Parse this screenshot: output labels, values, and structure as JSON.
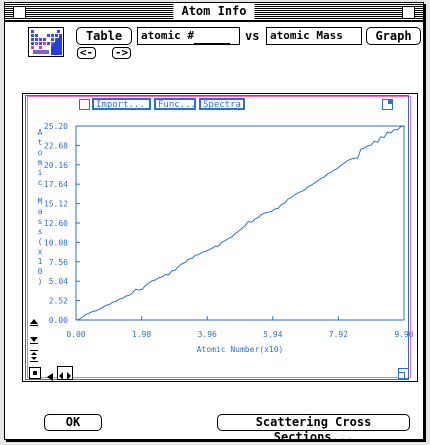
{
  "window": {
    "title": "Atom Info"
  },
  "toolbar": {
    "table_label": "Table",
    "x_field_value": "atomic #",
    "vs_label": "vs",
    "y_field_value": "atomic Mass",
    "graph_label": "Graph",
    "prev_label": "<-",
    "next_label": "->"
  },
  "graph_tools": {
    "import_label": "Import...",
    "func_label": "Func...",
    "spectra_label": "Spectra"
  },
  "footer": {
    "ok_label": "OK",
    "scattering_label": "Scattering Cross Sections..."
  },
  "colors": {
    "plot": "#2a6fd6",
    "frame": "#ff66cc"
  },
  "chart_data": {
    "type": "line",
    "xlabel": "Atomic Number(x10)",
    "ylabel": "Atomic Mass(x10)",
    "x_ticks": [
      "0.00",
      "1.98",
      "3.96",
      "5.94",
      "7.92",
      "9.90"
    ],
    "y_ticks": [
      "25.20",
      "22.68",
      "20.16",
      "17.64",
      "15.12",
      "12.60",
      "10.08",
      "7.56",
      "5.04",
      "2.52",
      "0.00"
    ],
    "xlim": [
      0,
      9.9
    ],
    "ylim": [
      0,
      25.2
    ],
    "series": [
      {
        "x": [
          0.1,
          0.2,
          0.3,
          0.4,
          0.5,
          0.6,
          0.7,
          0.8,
          0.9,
          1.0,
          1.1,
          1.2,
          1.3,
          1.4,
          1.5,
          1.6,
          1.7,
          1.8,
          1.9,
          2.0,
          2.1,
          2.2,
          2.3,
          2.4,
          2.5,
          2.6,
          2.7,
          2.8,
          2.9,
          3.0,
          3.1,
          3.2,
          3.3,
          3.4,
          3.5,
          3.6,
          3.7,
          3.8,
          3.9,
          4.0,
          4.1,
          4.2,
          4.3,
          4.4,
          4.5,
          4.6,
          4.7,
          4.8,
          4.9,
          5.0,
          5.1,
          5.2,
          5.3,
          5.4,
          5.5,
          5.6,
          5.7,
          5.8,
          5.9,
          6.0,
          6.1,
          6.2,
          6.3,
          6.4,
          6.5,
          6.6,
          6.7,
          6.8,
          6.9,
          7.0,
          7.1,
          7.2,
          7.3,
          7.4,
          7.5,
          7.6,
          7.7,
          7.8,
          7.9,
          8.0,
          8.1,
          8.2,
          8.3,
          8.4,
          8.5,
          8.6,
          8.7,
          8.8,
          8.9,
          9.0,
          9.1,
          9.2,
          9.3,
          9.4,
          9.5,
          9.6,
          9.7,
          9.8,
          9.9
        ],
        "y": [
          0.1,
          0.4,
          0.7,
          0.9,
          1.1,
          1.2,
          1.4,
          1.6,
          1.9,
          2.0,
          2.3,
          2.4,
          2.7,
          2.8,
          3.1,
          3.2,
          3.5,
          4.0,
          3.9,
          4.0,
          4.5,
          4.8,
          5.1,
          5.2,
          5.5,
          5.6,
          5.9,
          5.9,
          6.4,
          6.5,
          7.0,
          7.3,
          7.5,
          7.9,
          8.0,
          8.4,
          8.5,
          8.8,
          8.9,
          9.1,
          9.3,
          9.6,
          9.6,
          10.1,
          10.3,
          10.6,
          10.8,
          11.2,
          11.5,
          11.9,
          12.2,
          12.8,
          12.7,
          13.1,
          13.3,
          13.7,
          13.9,
          14.0,
          14.1,
          14.4,
          14.5,
          15.0,
          15.2,
          15.7,
          15.9,
          16.3,
          16.5,
          16.7,
          16.9,
          17.3,
          17.5,
          17.8,
          18.1,
          18.4,
          18.6,
          19.0,
          19.2,
          19.5,
          19.7,
          20.1,
          20.4,
          20.7,
          20.9,
          21.0,
          21.0,
          22.2,
          22.3,
          22.6,
          22.7,
          23.2,
          23.1,
          23.8,
          23.7,
          24.4,
          24.3,
          24.7,
          24.7,
          25.1,
          25.2
        ]
      }
    ]
  }
}
